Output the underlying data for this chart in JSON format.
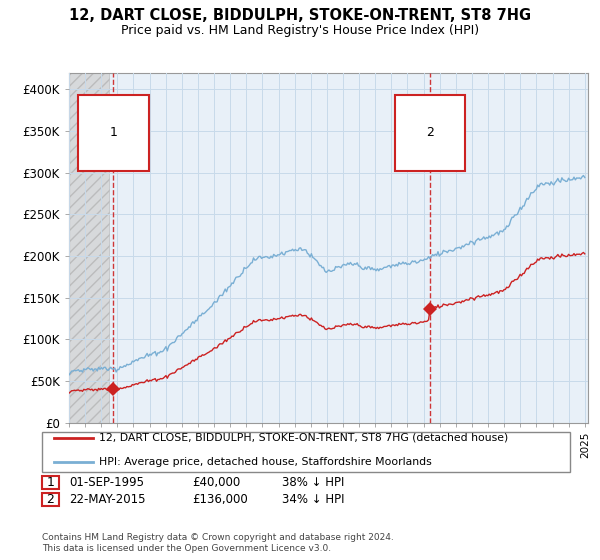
{
  "title_line1": "12, DART CLOSE, BIDDULPH, STOKE-ON-TRENT, ST8 7HG",
  "title_line2": "Price paid vs. HM Land Registry's House Price Index (HPI)",
  "legend_label1": "12, DART CLOSE, BIDDULPH, STOKE-ON-TRENT, ST8 7HG (detached house)",
  "legend_label2": "HPI: Average price, detached house, Staffordshire Moorlands",
  "annotation1_date": "01-SEP-1995",
  "annotation1_price": "£40,000",
  "annotation1_hpi": "38% ↓ HPI",
  "annotation2_date": "22-MAY-2015",
  "annotation2_price": "£136,000",
  "annotation2_hpi": "34% ↓ HPI",
  "footer": "Contains HM Land Registry data © Crown copyright and database right 2024.\nThis data is licensed under the Open Government Licence v3.0.",
  "sale1_year": 1995.75,
  "sale1_price": 40000,
  "sale2_year": 2015.38,
  "sale2_price": 136000,
  "ylim": [
    0,
    420000
  ],
  "yticks": [
    0,
    50000,
    100000,
    150000,
    200000,
    250000,
    300000,
    350000,
    400000
  ],
  "ytick_labels": [
    "£0",
    "£50K",
    "£100K",
    "£150K",
    "£200K",
    "£250K",
    "£300K",
    "£350K",
    "£400K"
  ],
  "hpi_color": "#7aafd4",
  "sale_color": "#cc2222",
  "grid_color": "#c8daea",
  "bg_color": "#e8f0f8",
  "hatch_bg": "#d8d8d8"
}
